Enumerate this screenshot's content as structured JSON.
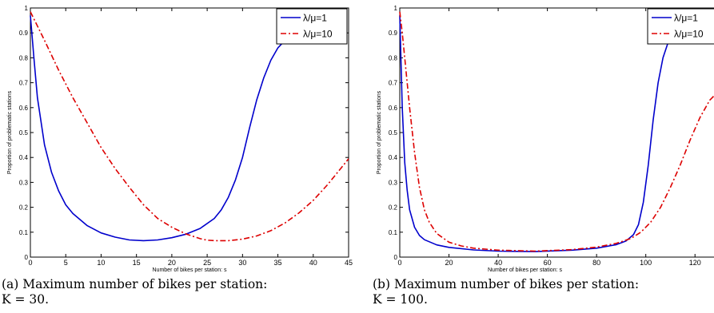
{
  "chart_data": [
    {
      "type": "line",
      "xlabel": "Number of bikes per station: s",
      "ylabel": "Proportion of problematic stations",
      "xlim": [
        0,
        45
      ],
      "ylim": [
        0,
        1
      ],
      "xticks": [
        "0",
        "5",
        "10",
        "15",
        "20",
        "25",
        "30",
        "35",
        "40",
        "45"
      ],
      "yticks": [
        "0",
        "0.1",
        "0.2",
        "0.3",
        "0.4",
        "0.5",
        "0.6",
        "0.7",
        "0.8",
        "0.9",
        "1"
      ],
      "legend_position": "top-right",
      "series": [
        {
          "name": "λ/μ=1",
          "color": "#0000cc",
          "dash": "solid",
          "x": [
            0,
            0.5,
            1,
            2,
            3,
            4,
            5,
            6,
            8,
            10,
            12,
            14,
            16,
            18,
            20,
            22,
            24,
            26,
            27,
            28,
            29,
            30,
            31,
            32,
            33,
            34,
            35,
            36,
            37,
            38
          ],
          "y": [
            0.97,
            0.8,
            0.64,
            0.45,
            0.34,
            0.265,
            0.21,
            0.175,
            0.127,
            0.097,
            0.08,
            0.069,
            0.066,
            0.069,
            0.078,
            0.092,
            0.115,
            0.155,
            0.19,
            0.24,
            0.31,
            0.4,
            0.52,
            0.63,
            0.72,
            0.79,
            0.84,
            0.87,
            0.89,
            0.895
          ]
        },
        {
          "name": "λ/μ=10",
          "color": "#dd0000",
          "dash": "dash-dot",
          "x": [
            0,
            2,
            4,
            6,
            8,
            10,
            12,
            14,
            16,
            18,
            20,
            22,
            24,
            25,
            26,
            28,
            30,
            32,
            34,
            36,
            38,
            40,
            42,
            44,
            45
          ],
          "y": [
            0.985,
            0.87,
            0.75,
            0.64,
            0.54,
            0.44,
            0.355,
            0.28,
            0.21,
            0.155,
            0.12,
            0.093,
            0.074,
            0.068,
            0.066,
            0.066,
            0.072,
            0.085,
            0.106,
            0.137,
            0.178,
            0.228,
            0.29,
            0.36,
            0.395
          ]
        }
      ]
    },
    {
      "type": "line",
      "xlabel": "Number of bikes per station: s",
      "ylabel": "Proportion of problematic stations",
      "xlim": [
        0,
        130
      ],
      "ylim": [
        0,
        1
      ],
      "xticks": [
        "0",
        "20",
        "40",
        "60",
        "80",
        "100",
        "120"
      ],
      "yticks": [
        "0",
        "0.1",
        "0.2",
        "0.3",
        "0.4",
        "0.5",
        "0.6",
        "0.7",
        "0.8",
        "0.9",
        "1"
      ],
      "legend_position": "top-right",
      "series": [
        {
          "name": "λ/μ=1",
          "color": "#0000cc",
          "dash": "solid",
          "x": [
            0,
            1,
            2,
            3,
            4,
            6,
            8,
            10,
            15,
            20,
            30,
            40,
            55,
            70,
            80,
            88,
            92,
            95,
            97,
            99,
            101,
            103,
            105,
            107,
            109,
            111
          ],
          "y": [
            0.97,
            0.6,
            0.38,
            0.27,
            0.19,
            0.12,
            0.087,
            0.07,
            0.049,
            0.039,
            0.029,
            0.024,
            0.022,
            0.028,
            0.036,
            0.05,
            0.065,
            0.09,
            0.13,
            0.22,
            0.37,
            0.55,
            0.7,
            0.8,
            0.86,
            0.89
          ]
        },
        {
          "name": "λ/μ=10",
          "color": "#dd0000",
          "dash": "dash-dot",
          "x": [
            0,
            1,
            2,
            4,
            6,
            8,
            10,
            12,
            15,
            20,
            25,
            30,
            40,
            55,
            70,
            80,
            88,
            94,
            98,
            102,
            106,
            110,
            114,
            118,
            122,
            126,
            130
          ],
          "y": [
            0.985,
            0.9,
            0.8,
            0.6,
            0.42,
            0.28,
            0.19,
            0.14,
            0.095,
            0.06,
            0.045,
            0.036,
            0.028,
            0.024,
            0.03,
            0.04,
            0.055,
            0.075,
            0.1,
            0.14,
            0.2,
            0.28,
            0.37,
            0.47,
            0.56,
            0.63,
            0.67
          ]
        }
      ]
    }
  ],
  "captions": [
    {
      "line1": "(a) Maximum number of bikes per station:",
      "line2": "K = 30."
    },
    {
      "line1": "(b) Maximum number of bikes per station:",
      "line2": "K = 100."
    }
  ]
}
